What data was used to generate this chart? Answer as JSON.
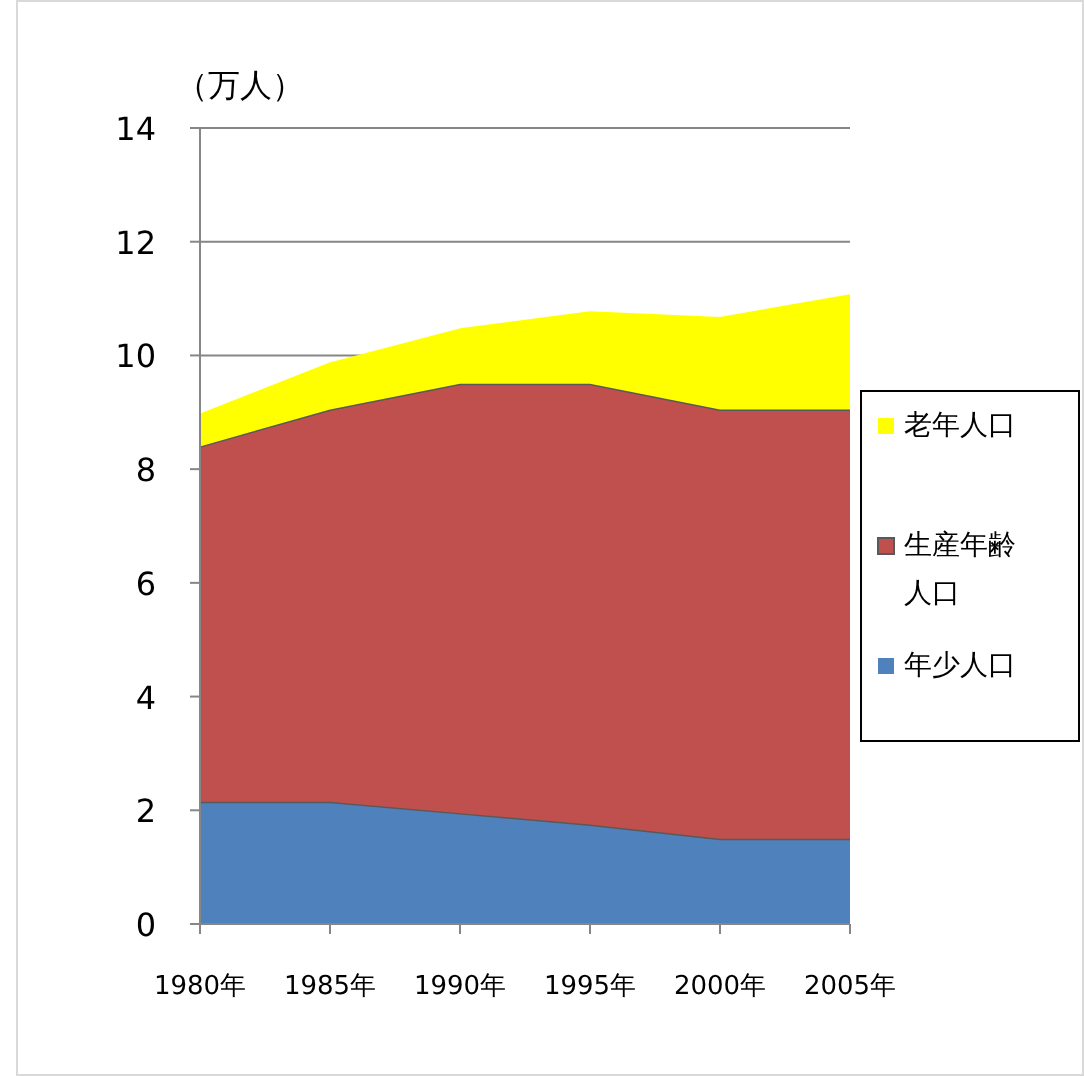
{
  "chart_data": {
    "type": "area",
    "stacked": true,
    "ylabel": "（万人）",
    "categories": [
      "1980年",
      "1985年",
      "1990年",
      "1995年",
      "2000年",
      "2005年"
    ],
    "series": [
      {
        "name": "年少人口",
        "color": "#4f81bd",
        "values": [
          2.15,
          2.15,
          1.95,
          1.75,
          1.5,
          1.5
        ]
      },
      {
        "name": "生産年齢人口",
        "color": "#c0504d",
        "values": [
          6.25,
          6.9,
          7.55,
          7.75,
          7.55,
          7.55
        ]
      },
      {
        "name": "老年人口",
        "color": "#ffff00",
        "values": [
          0.55,
          0.8,
          0.95,
          1.25,
          1.6,
          2.0
        ]
      }
    ],
    "ylim": [
      0,
      14
    ],
    "yticks": [
      0,
      2,
      4,
      6,
      8,
      10,
      12,
      14
    ],
    "grid": "y",
    "legend": "right"
  }
}
